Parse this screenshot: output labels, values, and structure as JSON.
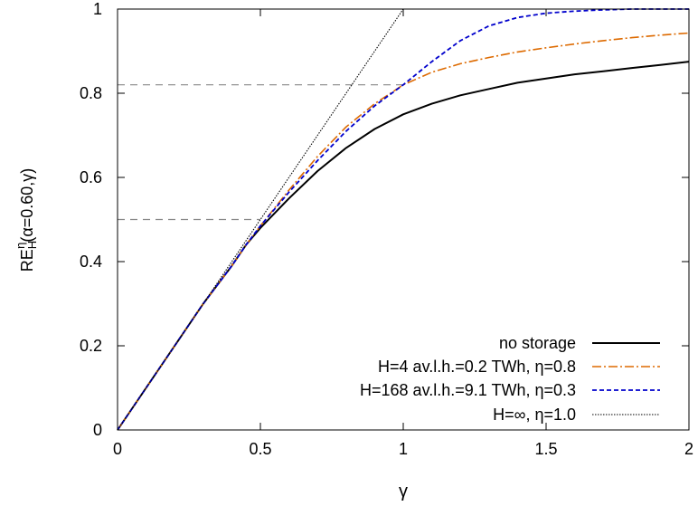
{
  "chart_data": {
    "type": "line",
    "ylabel_parts": {
      "base": "RE",
      "sub": "H",
      "sup": "η",
      "args": "(α=0.60,γ)"
    },
    "xlabel": "γ",
    "xlim": [
      0,
      2
    ],
    "ylim": [
      0,
      1
    ],
    "x_ticks": [
      0,
      0.5,
      1,
      1.5,
      2
    ],
    "x_tick_labels": [
      "0",
      "0.5",
      "1",
      "1.5",
      "2"
    ],
    "y_ticks": [
      0,
      0.2,
      0.4,
      0.6,
      0.8,
      1
    ],
    "y_tick_labels": [
      "0",
      "0.2",
      "0.4",
      "0.6",
      "0.8",
      "1"
    ],
    "grid": false,
    "legend_position": "bottom-right",
    "reference_lines": [
      {
        "x": [
          0,
          1.0
        ],
        "y": [
          0.82,
          0.82
        ]
      },
      {
        "x": [
          0,
          0.5
        ],
        "y": [
          0.5,
          0.5
        ]
      }
    ],
    "series": [
      {
        "name": "no storage",
        "color": "#000000",
        "style": "solid",
        "x": [
          0,
          0.1,
          0.2,
          0.3,
          0.4,
          0.45,
          0.5,
          0.6,
          0.7,
          0.8,
          0.9,
          1.0,
          1.1,
          1.2,
          1.3,
          1.4,
          1.5,
          1.6,
          1.7,
          1.8,
          1.9,
          2.0
        ],
        "y": [
          0,
          0.1,
          0.2,
          0.3,
          0.39,
          0.44,
          0.48,
          0.55,
          0.615,
          0.67,
          0.715,
          0.75,
          0.775,
          0.795,
          0.81,
          0.825,
          0.835,
          0.845,
          0.852,
          0.86,
          0.867,
          0.875
        ]
      },
      {
        "name": "H=4 av.l.h.=0.2 TWh, η=0.8",
        "color": "#dd6a00",
        "style": "dashdot",
        "x": [
          0,
          0.1,
          0.2,
          0.3,
          0.4,
          0.45,
          0.5,
          0.6,
          0.7,
          0.8,
          0.9,
          1.0,
          1.1,
          1.2,
          1.3,
          1.4,
          1.5,
          1.6,
          1.7,
          1.8,
          1.9,
          2.0
        ],
        "y": [
          0,
          0.1,
          0.2,
          0.3,
          0.39,
          0.44,
          0.485,
          0.57,
          0.65,
          0.72,
          0.775,
          0.82,
          0.85,
          0.87,
          0.885,
          0.898,
          0.908,
          0.917,
          0.925,
          0.932,
          0.938,
          0.943
        ]
      },
      {
        "name": "H=168 av.l.h.=9.1 TWh, η=0.3",
        "color": "#0000cc",
        "style": "dashed",
        "x": [
          0,
          0.1,
          0.2,
          0.3,
          0.4,
          0.45,
          0.5,
          0.6,
          0.7,
          0.8,
          0.9,
          1.0,
          1.1,
          1.2,
          1.3,
          1.4,
          1.5,
          1.6,
          1.7,
          1.8,
          1.9,
          2.0
        ],
        "y": [
          0,
          0.1,
          0.2,
          0.3,
          0.39,
          0.44,
          0.485,
          0.565,
          0.64,
          0.71,
          0.77,
          0.82,
          0.875,
          0.925,
          0.96,
          0.98,
          0.99,
          0.995,
          0.998,
          1.0,
          1.0,
          1.0
        ]
      },
      {
        "name": "H=∞, η=1.0",
        "color": "#000000",
        "style": "dotted",
        "x": [
          0,
          0.2,
          0.4,
          0.5,
          0.6,
          0.7,
          0.8,
          0.9,
          1.0,
          1.5,
          2.0
        ],
        "y": [
          0,
          0.2,
          0.4,
          0.5,
          0.6,
          0.7,
          0.8,
          0.9,
          1.0,
          1.0,
          1.0
        ]
      }
    ]
  }
}
